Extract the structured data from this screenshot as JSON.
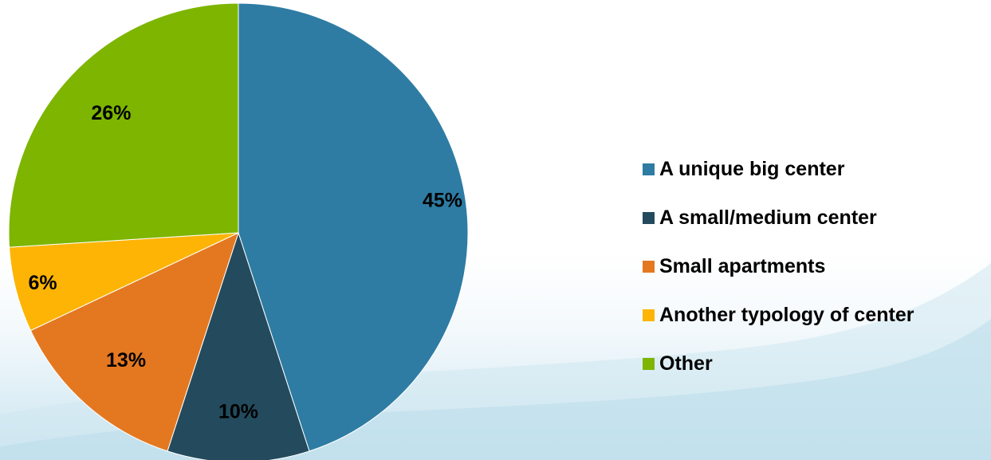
{
  "chart_data": {
    "type": "pie",
    "title": "",
    "legend_position": "right",
    "categories": [
      "A unique big center",
      "A small/medium center",
      "Small apartments",
      "Another typology of center",
      "Other"
    ],
    "values": [
      45,
      10,
      13,
      6,
      26
    ],
    "labels": [
      "45%",
      "10%",
      "13%",
      "6%",
      "26%"
    ],
    "colors": [
      "#2e7ca3",
      "#234b5d",
      "#e47820",
      "#fdb404",
      "#7db500"
    ]
  },
  "background": {
    "base_color": "#ffffff",
    "wave_color": "#bfe0ee"
  }
}
